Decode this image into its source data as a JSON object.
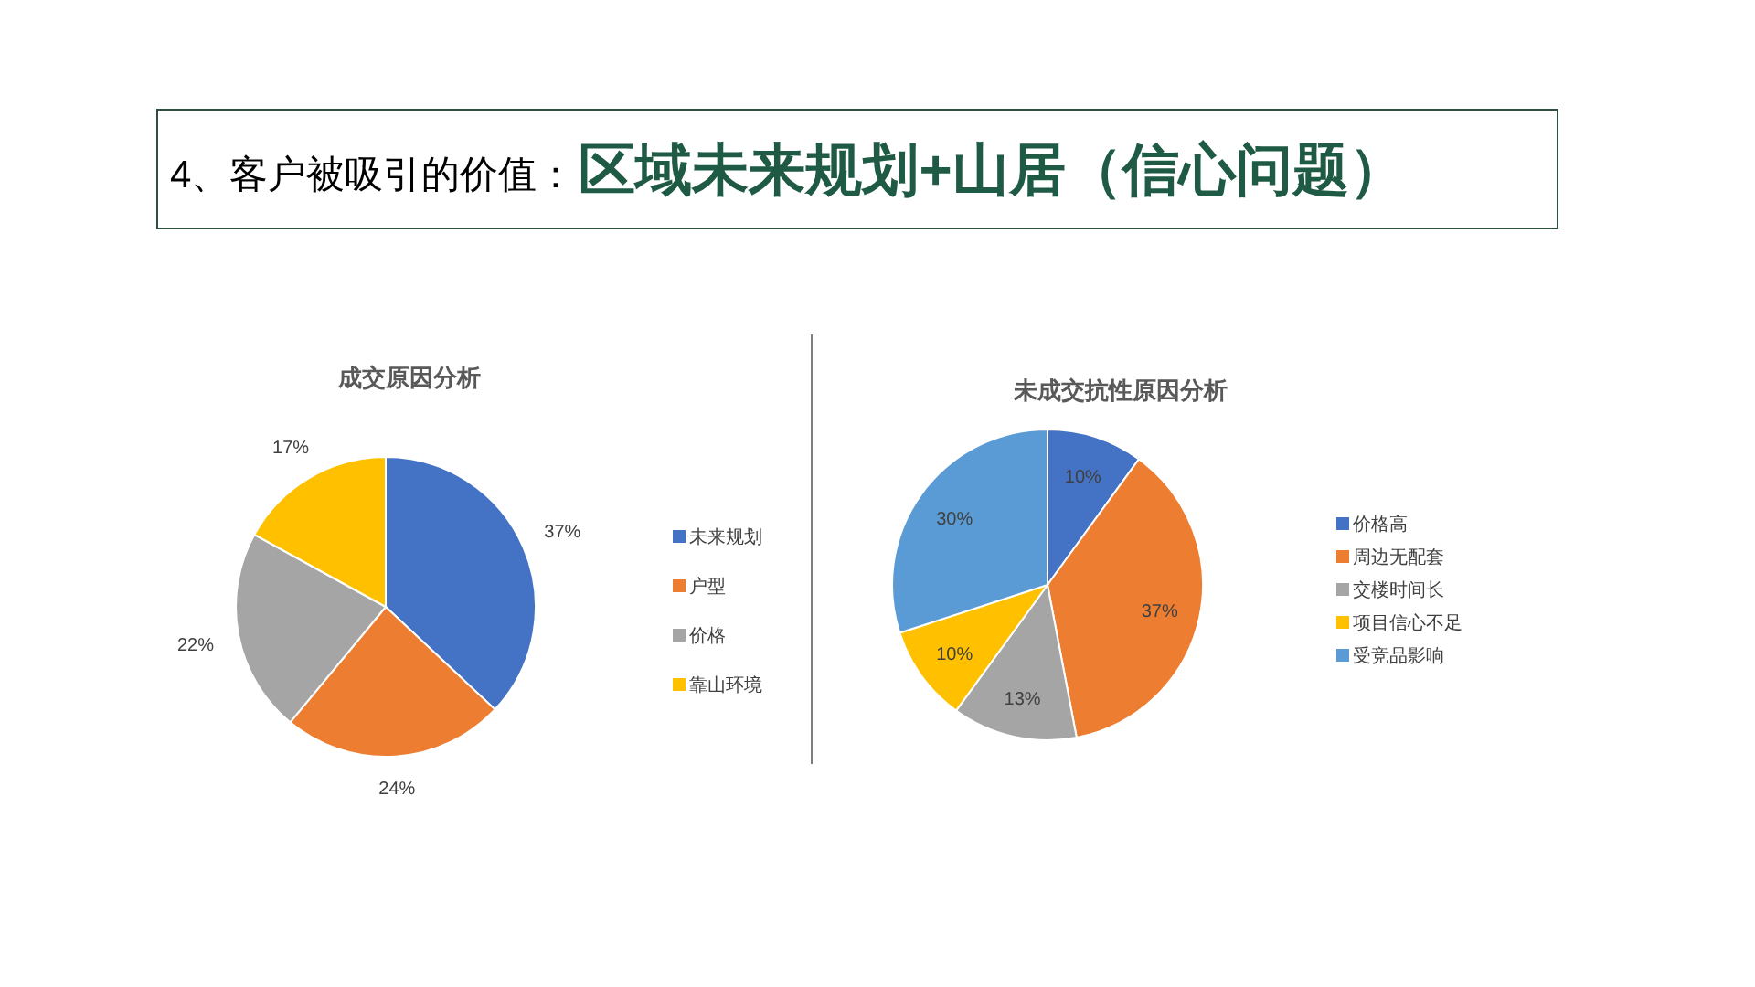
{
  "chart_data": [
    {
      "type": "other",
      "title": "4、客户被吸引的价值：",
      "subtitle": "区域未来规划+山居（信心问题）"
    },
    {
      "type": "pie",
      "title": "成交原因分析",
      "categories": [
        "未来规划",
        "户型",
        "价格",
        "靠山环境"
      ],
      "values": [
        37,
        24,
        22,
        17
      ],
      "colors": [
        "#4472c4",
        "#ed7d31",
        "#a5a5a5",
        "#ffc000"
      ],
      "value_labels": [
        "37%",
        "24%",
        "22%",
        "17%"
      ],
      "legend": "right"
    },
    {
      "type": "pie",
      "title": "未成交抗性原因分析",
      "categories": [
        "价格高",
        "周边无配套",
        "交楼时间长",
        "项目信心不足",
        "受竞品影响"
      ],
      "values": [
        10,
        37,
        13,
        10,
        30
      ],
      "colors": [
        "#4472c4",
        "#ed7d31",
        "#a5a5a5",
        "#ffc000",
        "#5b9bd5"
      ],
      "value_labels": [
        "10%",
        "37%",
        "13%",
        "10%",
        "30%"
      ],
      "legend": "right"
    }
  ]
}
